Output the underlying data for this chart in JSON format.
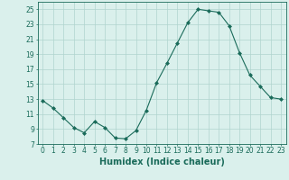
{
  "x": [
    0,
    1,
    2,
    3,
    4,
    5,
    6,
    7,
    8,
    9,
    10,
    11,
    12,
    13,
    14,
    15,
    16,
    17,
    18,
    19,
    20,
    21,
    22,
    23
  ],
  "y": [
    12.8,
    11.8,
    10.5,
    9.2,
    8.5,
    10.0,
    9.2,
    7.8,
    7.7,
    8.8,
    11.5,
    15.2,
    17.8,
    20.5,
    23.2,
    25.0,
    24.8,
    24.6,
    22.8,
    19.2,
    16.2,
    14.7,
    13.2,
    13.0
  ],
  "line_color": "#1a6b5a",
  "marker": "D",
  "marker_size": 2.0,
  "bg_color": "#daf0ec",
  "grid_color": "#b0d4ce",
  "xlabel": "Humidex (Indice chaleur)",
  "xlim": [
    -0.5,
    23.5
  ],
  "ylim": [
    7,
    26
  ],
  "yticks": [
    7,
    9,
    11,
    13,
    15,
    17,
    19,
    21,
    23,
    25
  ],
  "xticks": [
    0,
    1,
    2,
    3,
    4,
    5,
    6,
    7,
    8,
    9,
    10,
    11,
    12,
    13,
    14,
    15,
    16,
    17,
    18,
    19,
    20,
    21,
    22,
    23
  ],
  "tick_color": "#1a6b5a",
  "label_fontsize": 7.0,
  "tick_fontsize": 5.5
}
